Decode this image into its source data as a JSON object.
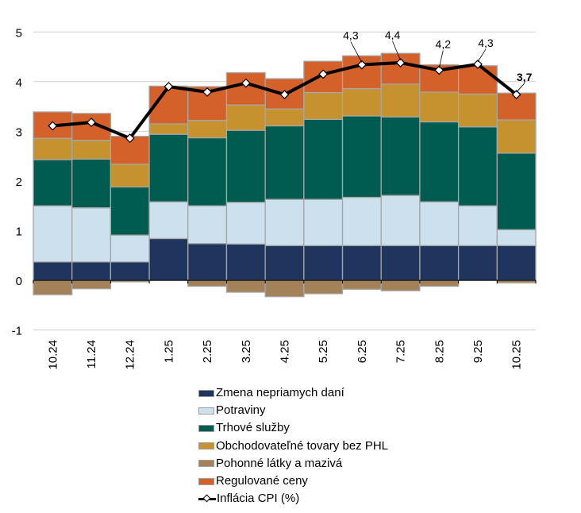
{
  "chart_data": {
    "type": "bar",
    "stacked": true,
    "title": "",
    "xlabel": "",
    "ylabel": "",
    "ylim": [
      -1,
      5
    ],
    "yticks": [
      5,
      4,
      3,
      2,
      1,
      0,
      -1
    ],
    "ytick_labels": [
      "5",
      "4",
      "3",
      "2",
      "1",
      "0",
      "-1"
    ],
    "grid": true,
    "legend_position": "bottom",
    "categories": [
      "10.24",
      "11.24",
      "12.24",
      "1.25",
      "2.25",
      "3.25",
      "4.25",
      "5.25",
      "6.25",
      "7.25",
      "8.25",
      "9.25",
      "10.25"
    ],
    "series": [
      {
        "name": "Zmena nepriamych daní",
        "type": "bar",
        "color": "#1f355e",
        "values": [
          0.37,
          0.37,
          0.37,
          0.84,
          0.74,
          0.73,
          0.7,
          0.7,
          0.7,
          0.7,
          0.7,
          0.7,
          0.7
        ]
      },
      {
        "name": "Potraviny",
        "type": "bar",
        "color": "#cce0ee",
        "values": [
          1.13,
          1.09,
          0.54,
          0.74,
          0.76,
          0.84,
          0.93,
          0.93,
          0.97,
          1.01,
          0.88,
          0.8,
          0.32
        ]
      },
      {
        "name": "Trhové služby",
        "type": "bar",
        "color": "#005b50",
        "values": [
          0.93,
          0.98,
          0.97,
          1.36,
          1.37,
          1.45,
          1.48,
          1.61,
          1.64,
          1.58,
          1.61,
          1.59,
          1.54
        ]
      },
      {
        "name": "Obchodovateľné tovary bez PHL",
        "type": "bar",
        "color": "#c6922e",
        "values": [
          0.43,
          0.38,
          0.46,
          0.21,
          0.35,
          0.51,
          0.34,
          0.54,
          0.55,
          0.66,
          0.6,
          0.66,
          0.67
        ]
      },
      {
        "name": "Pohonné látky a mazivá",
        "type": "bar",
        "color": "#a3825a",
        "values": [
          -0.29,
          -0.17,
          -0.03,
          0.0,
          -0.12,
          -0.24,
          -0.33,
          -0.27,
          -0.18,
          -0.21,
          -0.12,
          0.0,
          -0.05
        ]
      },
      {
        "name": "Regulované ceny",
        "type": "bar",
        "color": "#d4602a",
        "values": [
          0.53,
          0.54,
          0.56,
          0.76,
          0.68,
          0.65,
          0.61,
          0.63,
          0.66,
          0.62,
          0.55,
          0.57,
          0.54
        ]
      },
      {
        "name": "Inflácia CPI (%)",
        "type": "line",
        "color": "#000000",
        "values": [
          3.11,
          3.18,
          2.86,
          3.9,
          3.79,
          3.97,
          3.74,
          4.15,
          4.34,
          4.38,
          4.23,
          4.35,
          3.74
        ]
      }
    ],
    "annotations": [
      {
        "category": "6.25",
        "text": "4,3"
      },
      {
        "category": "7.25",
        "text": "4,4"
      },
      {
        "category": "8.25",
        "text": "4,2"
      },
      {
        "category": "9.25",
        "text": "4,3"
      },
      {
        "category": "10.25",
        "text": "3,7",
        "bold": true
      }
    ]
  }
}
